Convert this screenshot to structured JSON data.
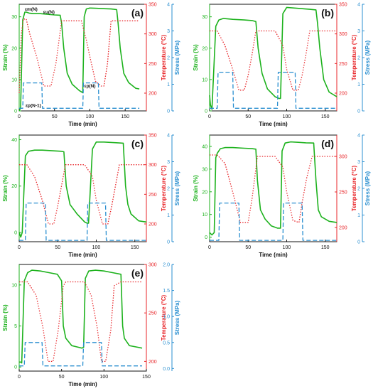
{
  "colors": {
    "strain": "#1db21d",
    "temperature": "#e8262a",
    "stress": "#2a8fd0",
    "axis": "#111111"
  },
  "chart_data": [
    {
      "panel": "(a)",
      "type": "line",
      "xlabel": "Time (min)",
      "x_ticks": [
        0,
        50,
        100,
        150
      ],
      "xlim": [
        0,
        180
      ],
      "axes": {
        "strain": {
          "label": "Strain (%)",
          "ticks": [
            0,
            10,
            20,
            30
          ],
          "lim": [
            0,
            34
          ]
        },
        "temperature": {
          "label": "Temperature (°C)",
          "ticks": [
            200,
            250,
            300,
            350
          ],
          "lim": [
            170,
            350
          ]
        },
        "stress": {
          "label": "Stress (MPa)",
          "ticks": [
            0,
            1,
            2,
            3,
            4
          ],
          "lim": [
            0,
            4
          ]
        }
      },
      "annotations": [
        {
          "text": "εm(N)",
          "x": 8,
          "y": 32,
          "axis": "strain"
        },
        {
          "text": "εu(N)",
          "x": 34,
          "y": 31,
          "axis": "strain"
        },
        {
          "text": "εp(N)",
          "x": 92,
          "y": 7.5,
          "axis": "strain"
        },
        {
          "text": "εp(N-1)",
          "x": 9,
          "y": 1.3,
          "axis": "strain"
        }
      ],
      "series": [
        {
          "axis": "strain",
          "style": "solid",
          "x": [
            0,
            2,
            5,
            8,
            10,
            14,
            20,
            30,
            40,
            50,
            58,
            60,
            63,
            68,
            75,
            85,
            90,
            92,
            95,
            100,
            110,
            120,
            130,
            138,
            140,
            143,
            148,
            155,
            165,
            170
          ],
          "y": [
            0,
            1,
            29,
            31.5,
            31.5,
            31.2,
            31,
            31,
            30.8,
            30.6,
            30.5,
            28,
            20,
            12,
            8.5,
            6.5,
            5.8,
            30,
            32.5,
            32.8,
            32.7,
            32.6,
            32.5,
            32.3,
            28,
            20,
            12,
            9,
            7.2,
            7
          ]
        },
        {
          "axis": "temperature",
          "style": "dotted",
          "x": [
            0,
            3,
            6,
            10,
            15,
            25,
            35,
            40,
            45,
            52,
            60,
            70,
            88,
            95,
            100,
            108,
            116,
            120,
            125,
            130,
            140,
            150,
            165,
            170
          ],
          "y": [
            200,
            300,
            325,
            325,
            300,
            260,
            212,
            212,
            212,
            250,
            322,
            322,
            322,
            290,
            262,
            220,
            212,
            212,
            250,
            322,
            322,
            322,
            322,
            322
          ]
        },
        {
          "axis": "stress",
          "style": "dashed",
          "x": [
            0,
            5,
            6,
            32,
            33,
            90,
            91,
            112,
            113,
            170
          ],
          "y": [
            0.1,
            0.1,
            1.05,
            1.05,
            0.1,
            0.1,
            1.05,
            1.05,
            0.1,
            0.1
          ]
        }
      ]
    },
    {
      "panel": "(b)",
      "type": "line",
      "xlabel": "Time (min)",
      "x_ticks": [
        0,
        50,
        100,
        150
      ],
      "xlim": [
        0,
        165
      ],
      "axes": {
        "strain": {
          "label": "Strain (%)",
          "ticks": [
            0,
            10,
            20,
            30
          ],
          "lim": [
            0,
            34
          ]
        },
        "temperature": {
          "label": "Temperature (°C)",
          "ticks": [
            200,
            250,
            300,
            350
          ],
          "lim": [
            170,
            350
          ]
        },
        "stress": {
          "label": "Stress (MPa)",
          "ticks": [
            0,
            1,
            2,
            3,
            4
          ],
          "lim": [
            0,
            4
          ]
        }
      },
      "series": [
        {
          "axis": "strain",
          "style": "solid",
          "x": [
            0,
            1,
            3,
            8,
            12,
            18,
            30,
            45,
            55,
            60,
            63,
            68,
            75,
            85,
            90,
            92,
            95,
            100,
            110,
            120,
            130,
            138,
            140,
            143,
            148,
            155,
            165
          ],
          "y": [
            5,
            2,
            0.5,
            27,
            29,
            29.5,
            29.2,
            29,
            28.8,
            28.5,
            20,
            12,
            7,
            4.5,
            4,
            4,
            31,
            33,
            32.8,
            32.6,
            32.4,
            32.2,
            28,
            20,
            10,
            6,
            4.5
          ]
        },
        {
          "axis": "temperature",
          "style": "dotted",
          "x": [
            0,
            10,
            20,
            30,
            38,
            45,
            50,
            55,
            60,
            70,
            85,
            95,
            100,
            108,
            115,
            120,
            125,
            130,
            140,
            150,
            165
          ],
          "y": [
            305,
            305,
            280,
            240,
            205,
            205,
            230,
            265,
            305,
            305,
            305,
            280,
            240,
            205,
            205,
            230,
            265,
            305,
            305,
            305,
            305
          ]
        },
        {
          "axis": "stress",
          "style": "dashed",
          "x": [
            0,
            5,
            10,
            11,
            30,
            31,
            88,
            89,
            111,
            112,
            165
          ],
          "y": [
            0.1,
            0.1,
            0.1,
            1.45,
            1.45,
            0.1,
            0.1,
            1.45,
            1.45,
            0.1,
            0.1
          ]
        }
      ]
    },
    {
      "panel": "(c)",
      "type": "line",
      "xlabel": "Time (min)",
      "x_ticks": [
        0,
        50,
        100,
        150
      ],
      "xlim": [
        0,
        165
      ],
      "axes": {
        "strain": {
          "label": "Strain (%)",
          "ticks": [
            0,
            20,
            40
          ],
          "lim": [
            -4,
            42
          ]
        },
        "temperature": {
          "label": "Temperature (°C)",
          "ticks": [
            200,
            250,
            300,
            350
          ],
          "lim": [
            170,
            350
          ]
        },
        "stress": {
          "label": "Stress (MPa)",
          "ticks": [
            0,
            1,
            2,
            3,
            4
          ],
          "lim": [
            0,
            4
          ]
        }
      },
      "series": [
        {
          "axis": "strain",
          "style": "solid",
          "x": [
            0,
            2,
            4,
            8,
            12,
            20,
            30,
            45,
            55,
            58,
            61,
            66,
            75,
            85,
            88,
            90,
            95,
            100,
            110,
            120,
            130,
            135,
            138,
            141,
            145,
            155,
            165
          ],
          "y": [
            0,
            -2,
            0,
            33,
            35,
            35.5,
            35.5,
            35.2,
            35,
            34.8,
            20,
            12,
            8,
            4.5,
            4,
            4,
            36,
            39,
            39,
            38.8,
            38.6,
            38.5,
            20,
            12,
            8,
            5,
            4.5
          ]
        },
        {
          "axis": "temperature",
          "style": "dotted",
          "x": [
            0,
            10,
            20,
            30,
            38,
            45,
            50,
            55,
            60,
            70,
            85,
            95,
            100,
            108,
            115,
            120,
            125,
            130,
            140,
            150,
            165
          ],
          "y": [
            300,
            300,
            280,
            240,
            200,
            200,
            230,
            265,
            300,
            300,
            300,
            280,
            240,
            200,
            200,
            230,
            265,
            300,
            300,
            300,
            300
          ]
        },
        {
          "axis": "stress",
          "style": "dashed",
          "x": [
            0,
            8,
            9,
            34,
            35,
            88,
            89,
            112,
            113,
            165
          ],
          "y": [
            0.05,
            0.05,
            1.45,
            1.45,
            0.05,
            0.05,
            1.45,
            1.45,
            0.05,
            0.05
          ]
        }
      ]
    },
    {
      "panel": "(d)",
      "type": "line",
      "xlabel": "Time (min)",
      "x_ticks": [
        0,
        50,
        100,
        150
      ],
      "xlim": [
        0,
        165
      ],
      "axes": {
        "strain": {
          "label": "Strain (%)",
          "ticks": [
            0,
            10,
            20,
            30,
            40
          ],
          "lim": [
            -2,
            45
          ]
        },
        "temperature": {
          "label": "Temperature (°C)",
          "ticks": [
            200,
            250,
            300
          ],
          "lim": [
            180,
            330
          ]
        },
        "stress": {
          "label": "Stress (MPa)",
          "ticks": [
            0,
            1,
            2,
            3,
            4
          ],
          "lim": [
            0,
            4
          ]
        }
      },
      "series": [
        {
          "axis": "strain",
          "style": "solid",
          "x": [
            0,
            3,
            6,
            8,
            10,
            14,
            20,
            30,
            45,
            55,
            60,
            62,
            66,
            72,
            80,
            88,
            92,
            94,
            98,
            105,
            115,
            125,
            135,
            138,
            141,
            145,
            155,
            165
          ],
          "y": [
            2,
            1,
            2,
            35,
            37,
            39,
            39.5,
            39.5,
            39.2,
            39,
            38.8,
            25,
            12,
            8,
            5,
            4,
            4,
            38,
            41.5,
            42,
            41.8,
            41.6,
            41.5,
            25,
            12,
            9,
            7,
            6.5
          ]
        },
        {
          "axis": "temperature",
          "style": "dotted",
          "x": [
            0,
            10,
            20,
            30,
            40,
            50,
            55,
            62,
            70,
            85,
            95,
            100,
            108,
            116,
            120,
            126,
            133,
            140,
            150,
            165
          ],
          "y": [
            302,
            302,
            290,
            250,
            207,
            207,
            240,
            300,
            300,
            300,
            285,
            250,
            210,
            207,
            235,
            270,
            300,
            300,
            300,
            300
          ]
        },
        {
          "axis": "stress",
          "style": "dashed",
          "x": [
            0,
            12,
            13,
            38,
            39,
            95,
            96,
            120,
            121,
            165
          ],
          "y": [
            0.05,
            0.05,
            1.45,
            1.45,
            0.05,
            0.05,
            1.45,
            1.45,
            0.05,
            0.05
          ]
        }
      ]
    },
    {
      "panel": "(e)",
      "type": "line",
      "xlabel": "Time (min)",
      "x_ticks": [
        0,
        50,
        100,
        150
      ],
      "xlim": [
        0,
        150
      ],
      "axes": {
        "strain": {
          "label": "Strain (%)",
          "ticks": [
            0,
            5,
            10
          ],
          "lim": [
            -0.5,
            12.5
          ]
        },
        "temperature": {
          "label": "Temperature (°C)",
          "ticks": [
            200,
            250,
            300
          ],
          "lim": [
            190,
            300
          ]
        },
        "stress": {
          "label": "Stress (MPa)",
          "ticks": [
            0.0,
            0.5,
            1.0,
            1.5,
            2.0
          ],
          "lim": [
            -0.05,
            2.0
          ]
        },
        "stress_tick_labels": [
          "0.0",
          "0.5",
          "1.0",
          "1.5",
          "2.0"
        ]
      },
      "series": [
        {
          "axis": "strain",
          "style": "solid",
          "x": [
            0,
            2,
            3,
            6,
            10,
            15,
            25,
            35,
            45,
            50,
            52,
            55,
            62,
            70,
            74,
            76,
            78,
            82,
            90,
            100,
            110,
            120,
            122,
            124,
            130,
            140,
            145
          ],
          "y": [
            0.6,
            0.6,
            0.5,
            10.5,
            11.5,
            11.8,
            11.7,
            11.5,
            11.3,
            10.5,
            5,
            3.5,
            2.6,
            2.4,
            2.3,
            2.4,
            10.8,
            11.7,
            11.8,
            11.7,
            11.5,
            11.3,
            5,
            3.5,
            2.6,
            2.4,
            2.3
          ]
        },
        {
          "axis": "temperature",
          "style": "dotted",
          "x": [
            0,
            5,
            10,
            20,
            28,
            34,
            40,
            46,
            52,
            55,
            70,
            77,
            85,
            92,
            97,
            102,
            108,
            112,
            120,
            140,
            145
          ],
          "y": [
            282,
            282,
            282,
            268,
            235,
            200,
            200,
            232,
            278,
            282,
            282,
            282,
            268,
            235,
            200,
            200,
            232,
            278,
            282,
            282,
            282
          ]
        },
        {
          "axis": "stress",
          "style": "dashed",
          "x": [
            0,
            6,
            7,
            27,
            28,
            75,
            76,
            97,
            98,
            145
          ],
          "y": [
            0.05,
            0.05,
            0.5,
            0.5,
            0.05,
            0.05,
            0.5,
            0.5,
            0.05,
            0.05
          ]
        }
      ]
    }
  ]
}
